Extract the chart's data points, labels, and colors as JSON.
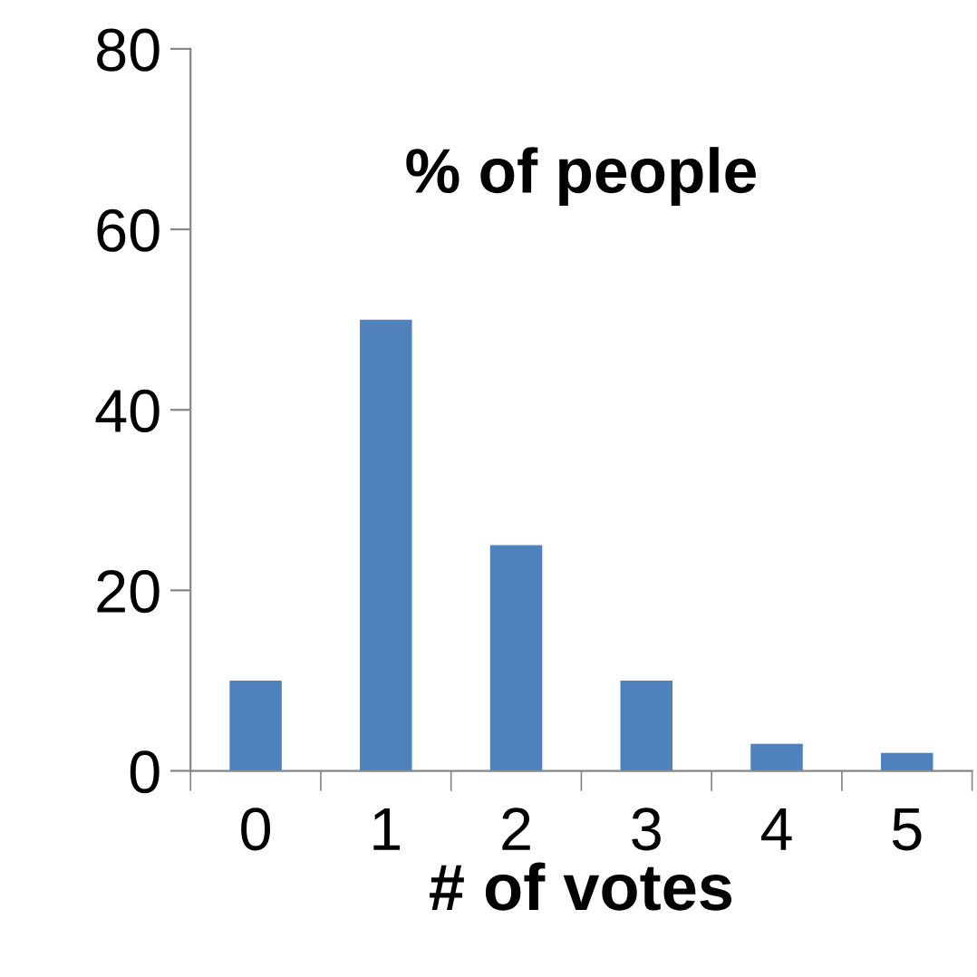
{
  "chart_data": {
    "type": "bar",
    "title": "% of people",
    "xlabel": "# of votes",
    "categories": [
      "0",
      "1",
      "2",
      "3",
      "4",
      "5"
    ],
    "values": [
      10,
      50,
      25,
      10,
      3,
      2
    ],
    "color": "#4f81bd",
    "ylim": [
      0,
      80
    ],
    "yticks": [
      0,
      20,
      40,
      60,
      80
    ],
    "grid": false,
    "legend": false
  }
}
